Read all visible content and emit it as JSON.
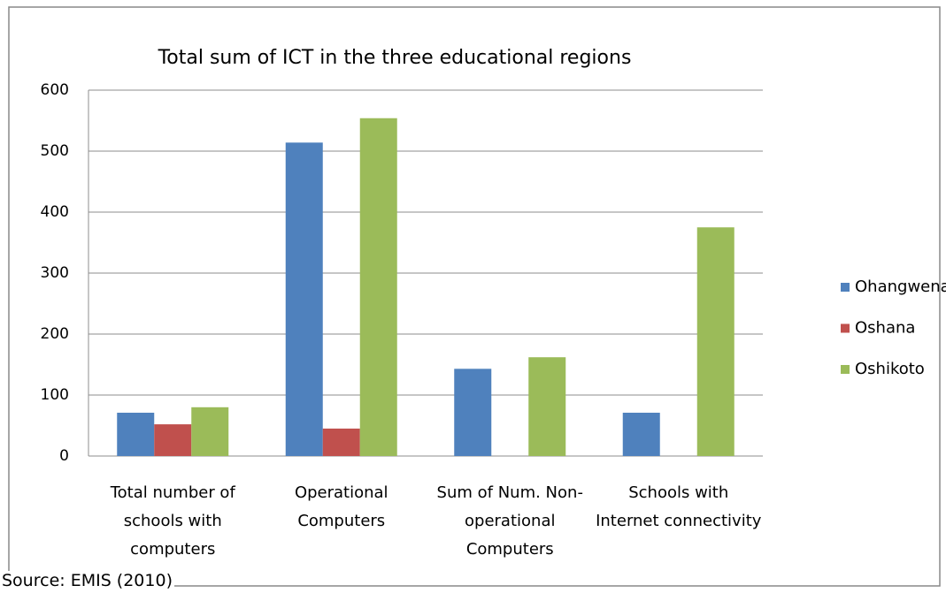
{
  "chart_data": {
    "type": "bar",
    "title": "Total sum of ICT in the three educational regions",
    "categories": [
      "Total number of schools with computers",
      "Operational Computers",
      "Sum of Num. Non-operational Computers",
      "Schools with Internet connectivity"
    ],
    "series": [
      {
        "name": "Ohangwena",
        "color": "#4f81bd",
        "values": [
          71,
          514,
          143,
          71
        ]
      },
      {
        "name": "Oshana",
        "color": "#c0504d",
        "values": [
          52,
          45,
          null,
          null
        ]
      },
      {
        "name": "Oshikoto",
        "color": "#9bbb59",
        "values": [
          80,
          554,
          162,
          375
        ]
      }
    ],
    "ylim": [
      0,
      600
    ],
    "yticks": [
      0,
      100,
      200,
      300,
      400,
      500,
      600
    ],
    "grid": true,
    "legend": "right",
    "source": "Source: EMIS (2010)"
  }
}
